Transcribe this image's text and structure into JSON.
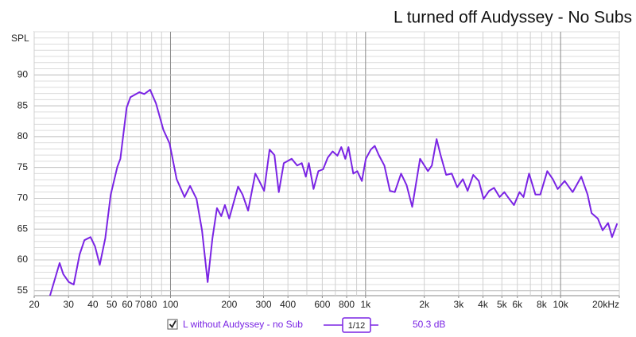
{
  "chart_data": {
    "type": "line",
    "title": "L turned off Audyssey - No Subs",
    "y_label": "SPL",
    "log_x": true,
    "grid": true,
    "xlim": [
      20,
      20000
    ],
    "ylim": [
      54.2,
      97
    ],
    "xticks": [
      20,
      30,
      40,
      50,
      60,
      70,
      80,
      100,
      200,
      300,
      400,
      600,
      800,
      {
        "value": 1000,
        "label": "1k"
      },
      {
        "value": 2000,
        "label": "2k"
      },
      {
        "value": 3000,
        "label": "3k"
      },
      {
        "value": 4000,
        "label": "4k"
      },
      {
        "value": 5000,
        "label": "5k"
      },
      {
        "value": 6000,
        "label": "6k"
      },
      {
        "value": 8000,
        "label": "8k"
      },
      {
        "value": 10000,
        "label": "10k"
      },
      {
        "value": 20000,
        "label": "20kHz"
      }
    ],
    "yticks": [
      55,
      60,
      65,
      70,
      75,
      80,
      85,
      90
    ],
    "series": [
      {
        "name": "L without Audyssey - no Sub",
        "color": "#7a24e4",
        "smoothing": "1/12",
        "level": "50.3 dB",
        "x": [
          24.1,
          27,
          28.2,
          30.1,
          31.9,
          34.2,
          36.2,
          38.9,
          41,
          43.4,
          46.3,
          49.4,
          53.4,
          55.3,
          59.6,
          62.3,
          69.2,
          73.4,
          78.6,
          84.2,
          91.9,
          98.9,
          107.5,
          118,
          126,
          136,
          145,
          155,
          164,
          173,
          182,
          190,
          200,
          222,
          234,
          250,
          272,
          285,
          302,
          322,
          341,
          359,
          381,
          418,
          446,
          471,
          494,
          512,
          541,
          573,
          606,
          640,
          678,
          717,
          751,
          787,
          817,
          865,
          907,
          958,
          1004,
          1064,
          1115,
          1169,
          1249,
          1334,
          1412,
          1521,
          1624,
          1735,
          1903,
          2088,
          2188,
          2313,
          2424,
          2589,
          2765,
          2952,
          3153,
          3337,
          3565,
          3808,
          4031,
          4305,
          4556,
          4865,
          5149,
          5450,
          5768,
          6159,
          6455,
          6893,
          7430,
          7866,
          8548,
          9126,
          9661,
          10500,
          11530,
          12770,
          13750,
          14410,
          15520,
          16420,
          17520,
          18370,
          19450
        ],
        "values": [
          54.2,
          59.5,
          57.7,
          56.4,
          56,
          60.9,
          63.2,
          63.7,
          62.2,
          59.2,
          63.5,
          70.6,
          75.1,
          76.4,
          84.7,
          86.4,
          87.2,
          86.9,
          87.6,
          85.4,
          81.1,
          78.9,
          73.1,
          70.2,
          72,
          69.9,
          64.8,
          56.4,
          63.5,
          68.4,
          67.1,
          68.9,
          66.7,
          71.9,
          70.6,
          68,
          74,
          72.8,
          71.2,
          77.9,
          77,
          71,
          75.7,
          76.4,
          75.3,
          75.7,
          73.5,
          75.7,
          71.5,
          74.4,
          74.7,
          76.6,
          77.6,
          76.9,
          78.3,
          76.4,
          78.3,
          74,
          74.4,
          72.8,
          76.4,
          77.9,
          78.5,
          77,
          75.3,
          71.2,
          71,
          74,
          72.1,
          68.6,
          76.4,
          74.4,
          75.3,
          79.6,
          77,
          73.8,
          74,
          71.8,
          73.1,
          71.2,
          73.8,
          72.8,
          69.9,
          71.2,
          71.7,
          70.2,
          71,
          69.9,
          68.9,
          71,
          70.2,
          74,
          70.6,
          70.6,
          74.4,
          73.1,
          71.5,
          72.8,
          71,
          73.5,
          70.6,
          67.6,
          66.7,
          64.8,
          66,
          63.7,
          65.8
        ]
      }
    ]
  }
}
